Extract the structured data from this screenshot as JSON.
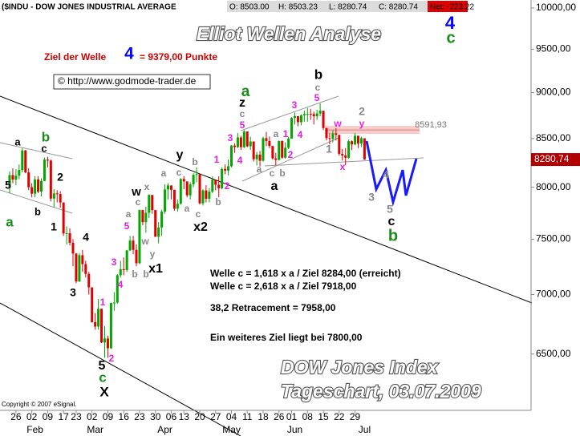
{
  "chart_data": {
    "type": "candlestick",
    "header": {
      "symbol": "($INDU - DOW JONES INDUSTRIAL AVERAGE",
      "open": "O: 8503.00",
      "high": "H: 8503.23",
      "low": "L: 8280.74",
      "close": "C: 8280.74",
      "net": "Net: -223.22"
    },
    "title": "Elliot Wellen Analyse",
    "subtitle": [
      "DOW Jones Index",
      "Tageschart, 03.07.2009"
    ],
    "target": {
      "prefix": "Ziel der Welle",
      "wave": "4",
      "suffix": "= 9379,00 Punkte"
    },
    "source": "© http://www.godmode-trader.de",
    "copyright": "Copyright © 2007 eSignal.",
    "notes": [
      "Welle c = 1,618 x a / Ziel 8284,00 (erreicht)",
      "Welle c = 2,618 x a / Ziel 7918,00",
      "38,2 Retracement = 7958,00",
      "Ein weiteres Ziel liegt bei 7800,00"
    ],
    "up_color": "#00a800",
    "down_color": "#e00000",
    "open": [
      8000,
      8122,
      8077,
      8116,
      8174,
      8375,
      8149,
      8000,
      7936,
      8078,
      7957,
      8063,
      8280,
      8270,
      7888,
      7939,
      7933,
      7850,
      7553,
      7555,
      7466,
      7366,
      7115,
      7351,
      7270,
      7182,
      7063,
      6763,
      6726,
      6876,
      6594,
      6627,
      6547,
      6926,
      6930,
      7170,
      7224,
      7216,
      7395,
      7486,
      7400,
      7278,
      7776,
      7660,
      7750,
      7924,
      7776,
      7522,
      7609,
      7761,
      7978,
      8018,
      7975,
      7789,
      7837,
      8083,
      8058,
      7920,
      8029,
      8125,
      8131,
      7841,
      7969,
      7886,
      7957,
      8076,
      8025,
      7989,
      8185,
      8168,
      8212,
      8426,
      8410,
      8512,
      8409,
      8575,
      8418,
      8469,
      8284,
      8331,
      8268,
      8504,
      8474,
      8422,
      8293,
      8277,
      8473,
      8300,
      8403,
      8500,
      8721,
      8740,
      8675,
      8750,
      8764,
      8764,
      8763,
      8739,
      8770,
      8799,
      8612,
      8504,
      8497,
      8555,
      8539,
      8340,
      8323,
      8299,
      8472,
      8438,
      8529,
      8447,
      8503
    ],
    "high": [
      8160,
      8190,
      8180,
      8230,
      8400,
      8380,
      8190,
      8040,
      8110,
      8110,
      8090,
      8300,
      8310,
      8280,
      7980,
      7970,
      7960,
      7850,
      7620,
      7600,
      7500,
      7370,
      7370,
      7400,
      7300,
      7200,
      7063,
      6840,
      6960,
      6880,
      6730,
      6650,
      6930,
      7020,
      7180,
      7300,
      7330,
      7400,
      7530,
      7530,
      7450,
      7780,
      7780,
      7810,
      7930,
      7920,
      7776,
      7660,
      7780,
      8030,
      8040,
      8018,
      7975,
      7880,
      8090,
      8110,
      8058,
      8050,
      8140,
      8200,
      8131,
      7980,
      8020,
      7990,
      8110,
      8076,
      8110,
      8200,
      8230,
      8280,
      8430,
      8450,
      8560,
      8530,
      8590,
      8575,
      8520,
      8470,
      8360,
      8370,
      8520,
      8570,
      8520,
      8420,
      8350,
      8480,
      8480,
      8460,
      8520,
      8730,
      8780,
      8740,
      8760,
      8800,
      8830,
      8820,
      8790,
      8810,
      8880,
      8799,
      8612,
      8560,
      8590,
      8610,
      8539,
      8390,
      8400,
      8490,
      8480,
      8560,
      8530,
      8520,
      8503.23
    ],
    "low": [
      7940,
      8040,
      8020,
      8080,
      8150,
      8140,
      7970,
      7900,
      7900,
      7940,
      7910,
      8060,
      8200,
      7860,
      7800,
      7850,
      7800,
      7530,
      7450,
      7440,
      7250,
      7100,
      7110,
      7200,
      7150,
      7000,
      6760,
      6700,
      6700,
      6590,
      6470,
      6470,
      6540,
      6860,
      6920,
      7150,
      7170,
      7200,
      7390,
      7360,
      7250,
      7270,
      7630,
      7560,
      7700,
      7740,
      7520,
      7460,
      7530,
      7740,
      7880,
      7880,
      7770,
      7760,
      7830,
      7980,
      7900,
      7880,
      8000,
      8050,
      7830,
      7820,
      7850,
      7850,
      7940,
      7970,
      7900,
      7980,
      8130,
      8120,
      8200,
      8350,
      8400,
      8380,
      8400,
      8410,
      8380,
      8260,
      8220,
      8210,
      8260,
      8420,
      8400,
      8280,
      8220,
      8270,
      8290,
      8290,
      8390,
      8500,
      8650,
      8630,
      8640,
      8680,
      8680,
      8700,
      8650,
      8700,
      8740,
      8590,
      8480,
      8440,
      8460,
      8480,
      8320,
      8270,
      8220,
      8290,
      8380,
      8430,
      8400,
      8410,
      8280.74
    ],
    "close": [
      8122,
      8077,
      8116,
      8174,
      8375,
      8149,
      8000,
      7936,
      8078,
      7957,
      8063,
      8280,
      8270,
      7888,
      7939,
      7933,
      7850,
      7553,
      7555,
      7466,
      7366,
      7115,
      7351,
      7270,
      7182,
      7063,
      6763,
      6726,
      6876,
      6594,
      6627,
      6547,
      6926,
      6930,
      7170,
      7224,
      7216,
      7395,
      7486,
      7400,
      7278,
      7776,
      7660,
      7750,
      7924,
      7776,
      7522,
      7609,
      7761,
      7978,
      8018,
      7975,
      7789,
      7837,
      8083,
      8058,
      7920,
      8029,
      8125,
      8131,
      7841,
      7969,
      7886,
      7957,
      8076,
      8025,
      7989,
      8185,
      8168,
      8212,
      8426,
      8410,
      8512,
      8409,
      8575,
      8418,
      8469,
      8284,
      8331,
      8268,
      8504,
      8474,
      8422,
      8293,
      8277,
      8473,
      8300,
      8403,
      8500,
      8721,
      8740,
      8675,
      8750,
      8764,
      8764,
      8763,
      8739,
      8770,
      8799,
      8612,
      8504,
      8497,
      8555,
      8539,
      8340,
      8323,
      8299,
      8472,
      8438,
      8529,
      8447,
      8504,
      8280.74
    ],
    "log_scale": true,
    "ylim": [
      6060,
      10100
    ],
    "yticks": [
      {
        "value": 6500,
        "label": "6500,00"
      },
      {
        "value": 7000,
        "label": "7000,00"
      },
      {
        "value": 7500,
        "label": "7500,00"
      },
      {
        "value": 8000,
        "label": "8000,00"
      },
      {
        "value": 8500,
        "label": "8500,00"
      },
      {
        "value": 9000,
        "label": "9000,00"
      },
      {
        "value": 9500,
        "label": "9500,00"
      },
      {
        "value": 10000,
        "label": "10000,00"
      }
    ],
    "xticks": [
      {
        "value": 2,
        "label": "26"
      },
      {
        "value": 7,
        "label": "02"
      },
      {
        "value": 12,
        "label": "09"
      },
      {
        "value": 17,
        "label": "17"
      },
      {
        "value": 21,
        "label": "23"
      },
      {
        "value": 26,
        "label": "02"
      },
      {
        "value": 31,
        "label": "09"
      },
      {
        "value": 36,
        "label": "16"
      },
      {
        "value": 41,
        "label": "23"
      },
      {
        "value": 46,
        "label": "30"
      },
      {
        "value": 51,
        "label": "06"
      },
      {
        "value": 55,
        "label": "13"
      },
      {
        "value": 60,
        "label": "20"
      },
      {
        "value": 65,
        "label": "27"
      },
      {
        "value": 70,
        "label": "04"
      },
      {
        "value": 75,
        "label": "11"
      },
      {
        "value": 80,
        "label": "18"
      },
      {
        "value": 85,
        "label": "26"
      },
      {
        "value": 89,
        "label": "01"
      },
      {
        "value": 94,
        "label": "08"
      },
      {
        "value": 99,
        "label": "15"
      },
      {
        "value": 104,
        "label": "22"
      },
      {
        "value": 109,
        "label": "29"
      }
    ],
    "xmonths": [
      {
        "value": 7,
        "label": "Feb"
      },
      {
        "value": 26,
        "label": "Mar"
      },
      {
        "value": 48,
        "label": "Apr"
      },
      {
        "value": 69,
        "label": "May"
      },
      {
        "value": 89,
        "label": "Jun"
      },
      {
        "value": 111,
        "label": "Jul"
      }
    ],
    "level": {
      "value": 8591.93,
      "label": "8591,93"
    },
    "last_price": {
      "value": 8280.74,
      "label": "8280,74"
    },
    "annotations": [
      {
        "text": "b",
        "color": "#1a8c1a"
      },
      {
        "text": "a",
        "color": "#000000"
      },
      {
        "text": "c",
        "color": "#000000"
      },
      {
        "text": "2",
        "color": "#000000"
      },
      {
        "text": "5",
        "color": "#000000"
      },
      {
        "text": "a",
        "color": "#1a8c1a"
      },
      {
        "text": "b",
        "color": "#000000"
      },
      {
        "text": "1",
        "color": "#000000"
      },
      {
        "text": "4",
        "color": "#000000"
      },
      {
        "text": "3",
        "color": "#000000"
      },
      {
        "text": "1",
        "color": "#e81ee8"
      },
      {
        "text": "2",
        "color": "#e81ee8"
      },
      {
        "text": "5",
        "color": "#000000"
      },
      {
        "text": "c",
        "color": "#1a8c1a"
      },
      {
        "text": "X",
        "color": "#000000"
      },
      {
        "text": "3",
        "color": "#e81ee8"
      },
      {
        "text": "4",
        "color": "#e81ee8"
      },
      {
        "text": "5",
        "color": "#e81ee8"
      },
      {
        "text": "a",
        "color": "#888888"
      },
      {
        "text": "b",
        "color": "#888888"
      },
      {
        "text": "b",
        "color": "#888888"
      },
      {
        "text": "c",
        "color": "#888888"
      },
      {
        "text": "w",
        "color": "#000000"
      },
      {
        "text": "x",
        "color": "#888888"
      },
      {
        "text": "w",
        "color": "#888888"
      },
      {
        "text": "y",
        "color": "#888888"
      },
      {
        "text": "x1",
        "color": "#000000"
      },
      {
        "text": "y",
        "color": "#000000"
      },
      {
        "text": "a",
        "color": "#888888"
      },
      {
        "text": "c",
        "color": "#888888"
      },
      {
        "text": "b",
        "color": "#888888"
      },
      {
        "text": "a",
        "color": "#888888"
      },
      {
        "text": "c",
        "color": "#888888"
      },
      {
        "text": "x2",
        "color": "#000000"
      },
      {
        "text": "b",
        "color": "#888888"
      },
      {
        "text": "1",
        "color": "#e81ee8"
      },
      {
        "text": "2",
        "color": "#e81ee8"
      },
      {
        "text": "3",
        "color": "#e81ee8"
      },
      {
        "text": "4",
        "color": "#e81ee8"
      },
      {
        "text": "5",
        "color": "#e81ee8"
      },
      {
        "text": "c",
        "color": "#888888"
      },
      {
        "text": "z",
        "color": "#000000"
      },
      {
        "text": "a",
        "color": "#1a8c1a"
      },
      {
        "text": "a",
        "color": "#888888"
      },
      {
        "text": "c",
        "color": "#888888"
      },
      {
        "text": "b",
        "color": "#888888"
      },
      {
        "text": "a",
        "color": "#000000"
      },
      {
        "text": "a",
        "color": "#888888"
      },
      {
        "text": "1",
        "color": "#e81ee8"
      },
      {
        "text": "2",
        "color": "#e81ee8"
      },
      {
        "text": "3",
        "color": "#e81ee8"
      },
      {
        "text": "4",
        "color": "#e81ee8"
      },
      {
        "text": "5",
        "color": "#e81ee8"
      },
      {
        "text": "c",
        "color": "#888888"
      },
      {
        "text": "b",
        "color": "#000000"
      },
      {
        "text": "w",
        "color": "#e81ee8"
      },
      {
        "text": "1",
        "color": "#888888"
      },
      {
        "text": "x",
        "color": "#e81ee8"
      },
      {
        "text": "2",
        "color": "#888888"
      },
      {
        "text": "y",
        "color": "#e81ee8"
      },
      {
        "text": "3",
        "color": "#888888"
      },
      {
        "text": "4",
        "color": "#888888"
      },
      {
        "text": "5",
        "color": "#888888"
      },
      {
        "text": "c",
        "color": "#000000"
      },
      {
        "text": "b",
        "color": "#1a8c1a"
      },
      {
        "text": "4",
        "color": "#0000ff"
      },
      {
        "text": "c",
        "color": "#1a8c1a"
      }
    ]
  }
}
